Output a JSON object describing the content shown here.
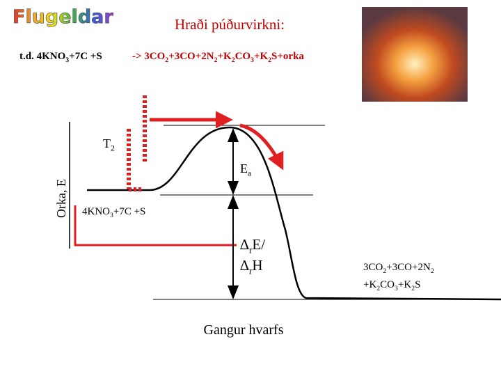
{
  "logo": "Flugeldar",
  "title": "Hraði púðurvirkni:",
  "example_label": [
    "t.d. 4KNO",
    "3",
    "+7C +S"
  ],
  "example_products": [
    "->  3CO",
    "2",
    "+3CO+2N",
    "2",
    "+K",
    "2",
    "CO",
    "3",
    "+K",
    "2",
    "S+orka"
  ],
  "temperature_label": [
    "T",
    "2"
  ],
  "activation_label": [
    "E",
    "a"
  ],
  "y_axis_label": "Orka, E",
  "reactants_label": [
    "4KNO",
    "3",
    "+7C +S"
  ],
  "delta_label_1": [
    "∆",
    "r",
    "E/"
  ],
  "delta_label_2": [
    "∆",
    "r",
    "H"
  ],
  "products_line_1": [
    "3CO",
    "2",
    "+3CO+2N",
    "2"
  ],
  "products_line_2": [
    "+K",
    "2",
    "CO",
    "3",
    "+K",
    "2",
    "S"
  ],
  "x_axis_label": "Gangur hvarfs"
}
